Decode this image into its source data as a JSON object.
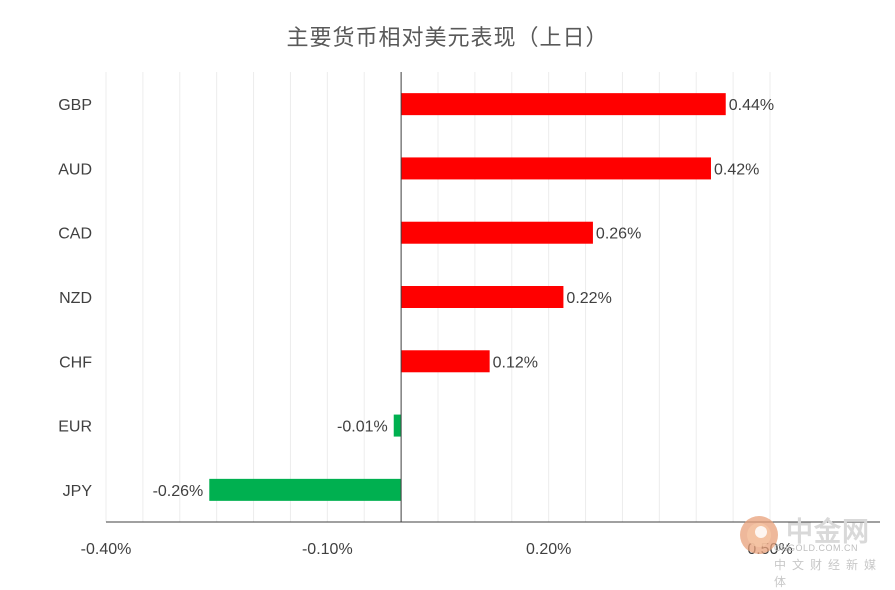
{
  "chart_data": {
    "type": "bar",
    "orientation": "horizontal",
    "title": "主要货币相对美元表现（上日）",
    "categories": [
      "GBP",
      "AUD",
      "CAD",
      "NZD",
      "CHF",
      "EUR",
      "JPY"
    ],
    "values": [
      0.44,
      0.42,
      0.26,
      0.22,
      0.12,
      -0.01,
      -0.26
    ],
    "value_labels": [
      "0.44%",
      "0.42%",
      "0.26%",
      "0.22%",
      "0.12%",
      "-0.01%",
      "-0.26%"
    ],
    "xlim": [
      -0.4,
      0.5
    ],
    "x_ticks": [
      -0.4,
      -0.1,
      0.2,
      0.5
    ],
    "x_tick_labels": [
      "-0.40%",
      "-0.10%",
      "0.20%",
      "0.50%"
    ],
    "grid": "vertical",
    "legend": "none",
    "colors": {
      "positive": "#ff0000",
      "negative": "#00b050",
      "grid": "#ececec",
      "axis": "#404040"
    }
  },
  "watermark": {
    "brand": "中金网",
    "url": "CNGOLD.COM.CN",
    "tagline": "中文财经新媒体"
  }
}
